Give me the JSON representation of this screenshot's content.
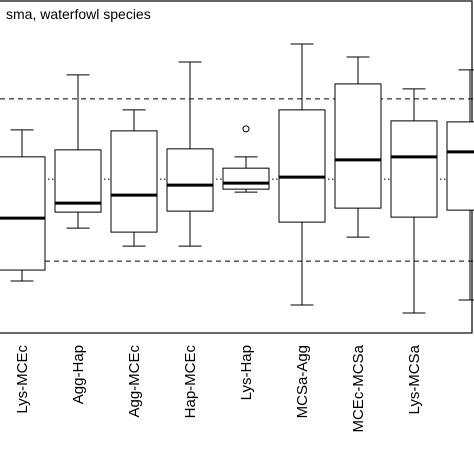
{
  "chart_data": {
    "type": "box",
    "title": "sma, waterfowl species",
    "categories": [
      "Lys-MCEc",
      "Agg-Hap",
      "Agg-MCEc",
      "Hap-MCEc",
      "Lys-Hap",
      "MCSa-Agg",
      "MCEc-MCSa",
      "Lys-MCSa",
      null
    ],
    "boxes": [
      {
        "whisker_low": 1.56,
        "q1": 1.89,
        "median": 3.45,
        "q3": 5.29,
        "whisker_high": 6.1,
        "outliers": []
      },
      {
        "whisker_low": 3.15,
        "q1": 3.63,
        "median": 3.9,
        "q3": 5.5,
        "whisker_high": 7.75,
        "outliers": []
      },
      {
        "whisker_low": 2.61,
        "q1": 3.03,
        "median": 4.14,
        "q3": 6.07,
        "whisker_high": 6.7,
        "outliers": []
      },
      {
        "whisker_low": 2.61,
        "q1": 3.66,
        "median": 4.44,
        "q3": 5.53,
        "whisker_high": 8.14,
        "outliers": []
      },
      {
        "whisker_low": 4.23,
        "q1": 4.32,
        "median": 4.5,
        "q3": 4.95,
        "whisker_high": 5.29,
        "outliers": [
          6.13
        ]
      },
      {
        "whisker_low": 0.84,
        "q1": 3.33,
        "median": 4.68,
        "q3": 6.7,
        "whisker_high": 8.68,
        "outliers": []
      },
      {
        "whisker_low": 2.88,
        "q1": 3.75,
        "median": 5.2,
        "q3": 7.48,
        "whisker_high": 8.29,
        "outliers": []
      },
      {
        "whisker_low": 0.6,
        "q1": 3.48,
        "median": 5.29,
        "q3": 6.37,
        "whisker_high": 7.33,
        "outliers": []
      },
      {
        "whisker_low": 0.99,
        "q1": 3.69,
        "median": 5.44,
        "q3": 6.34,
        "whisker_high": 7.9,
        "outliers": []
      }
    ],
    "reference_lines": [
      {
        "value": 7.03,
        "style": "dashed"
      },
      {
        "value": 4.62,
        "style": "dotted"
      },
      {
        "value": 2.16,
        "style": "dashed"
      }
    ],
    "ylim": [
      0,
      10
    ],
    "color": "#000000"
  }
}
